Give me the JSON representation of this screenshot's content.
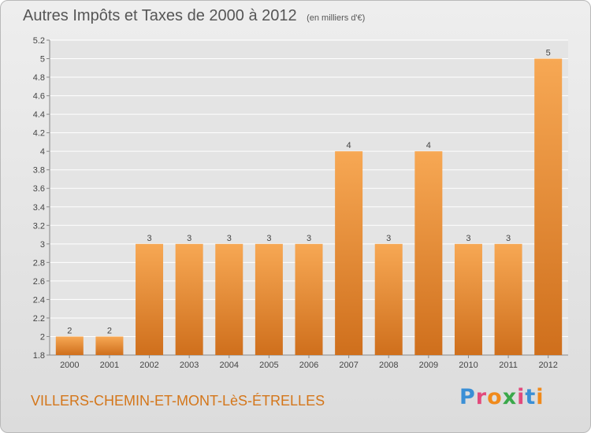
{
  "header": {
    "title": "Autres Impôts et Taxes de 2000 à 2012",
    "subtitle": "(en milliers d'€)"
  },
  "footer": {
    "commune": "VILLERS-CHEMIN-ET-MONT-LèS-ÉTRELLES",
    "brand": "Proxiti",
    "brand_colors": [
      "#3a8fd6",
      "#e24a7c",
      "#f08a1c",
      "#3aa84a",
      "#e24a7c",
      "#3a8fd6",
      "#f08a1c"
    ]
  },
  "chart_data": {
    "type": "bar",
    "categories": [
      "2000",
      "2001",
      "2002",
      "2003",
      "2004",
      "2005",
      "2006",
      "2007",
      "2008",
      "2009",
      "2010",
      "2011",
      "2012"
    ],
    "values": [
      2,
      2,
      3,
      3,
      3,
      3,
      3,
      4,
      3,
      4,
      3,
      3,
      5
    ],
    "data_labels": [
      "2",
      "2",
      "3",
      "3",
      "3",
      "3",
      "3",
      "4",
      "3",
      "4",
      "3",
      "3",
      "5"
    ],
    "ylim": [
      1.8,
      5.2
    ],
    "yticks": [
      "1.8",
      "2",
      "2.2",
      "2.4",
      "2.6",
      "2.8",
      "3",
      "3.2",
      "3.4",
      "3.6",
      "3.8",
      "4",
      "4.2",
      "4.4",
      "4.6",
      "4.8",
      "5",
      "5.2"
    ],
    "grid": true,
    "legend": "none",
    "bar_color_light": "#f7a854",
    "bar_color_dark": "#cf6f1c"
  }
}
